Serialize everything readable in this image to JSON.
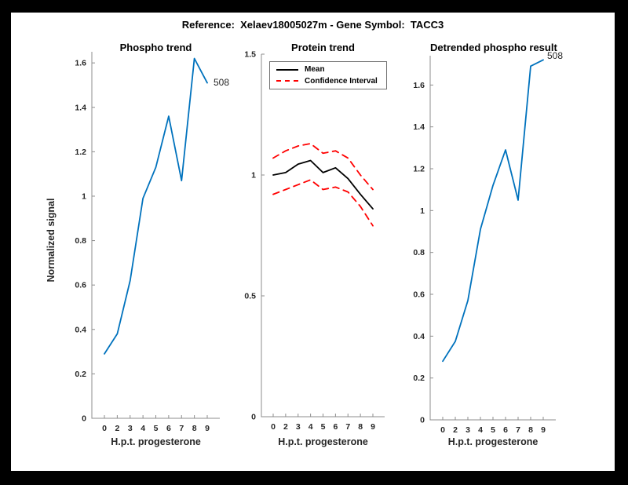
{
  "figure": {
    "title": "Reference:  Xelaev18005027m - Gene Symbol:  TACC3",
    "background_color": "#000000",
    "canvas_color": "#ffffff"
  },
  "colors": {
    "line_blue": "#0072BD",
    "ci_red": "#FF0000",
    "mean_black": "#000000",
    "axis_gray": "#8c8c8c",
    "tick_text": "#262626"
  },
  "legend": {
    "entries": [
      {
        "label": "Mean",
        "style": "solid-black"
      },
      {
        "label": "Confidence Interval",
        "style": "dashed-red"
      }
    ]
  },
  "chart_data": [
    {
      "type": "line",
      "title": "Phospho trend",
      "xlabel": "H.p.t. progesterone",
      "ylabel": "Normalized signal",
      "categories": [
        "0",
        "2",
        "3",
        "4",
        "5",
        "6",
        "7",
        "8",
        "9"
      ],
      "yticks": [
        "0",
        "0.2",
        "0.4",
        "0.6",
        "0.8",
        "1",
        "1.2",
        "1.4",
        "1.6"
      ],
      "ytick_values": [
        0,
        0.2,
        0.4,
        0.6,
        0.8,
        1,
        1.2,
        1.4,
        1.6
      ],
      "ylim": [
        0,
        1.65
      ],
      "grid": false,
      "annotation": "508",
      "series": [
        {
          "name": "phospho",
          "color": "#0072BD",
          "dash": "none",
          "values": [
            0.29,
            0.38,
            0.62,
            0.99,
            1.13,
            1.36,
            1.07,
            1.62,
            1.51
          ]
        }
      ]
    },
    {
      "type": "line",
      "title": "Protein trend",
      "xlabel": "H.p.t. progesterone",
      "ylabel": "",
      "categories": [
        "0",
        "2",
        "3",
        "4",
        "5",
        "6",
        "7",
        "8",
        "9"
      ],
      "yticks": [
        "0",
        "0.5",
        "1",
        "1.5"
      ],
      "ytick_values": [
        0,
        0.5,
        1,
        1.5
      ],
      "ylim": [
        0,
        1.5
      ],
      "grid": false,
      "legend_position": "top-center-inside",
      "series": [
        {
          "name": "Mean",
          "color": "#000000",
          "dash": "none",
          "values": [
            1.0,
            1.01,
            1.045,
            1.06,
            1.01,
            1.03,
            0.985,
            0.92,
            0.86
          ]
        },
        {
          "name": "Confidence Interval upper",
          "color": "#FF0000",
          "dash": "8 6",
          "values": [
            1.07,
            1.1,
            1.12,
            1.13,
            1.09,
            1.1,
            1.07,
            1.0,
            0.94
          ]
        },
        {
          "name": "Confidence Interval lower",
          "color": "#FF0000",
          "dash": "8 6",
          "values": [
            0.92,
            0.94,
            0.96,
            0.98,
            0.94,
            0.95,
            0.93,
            0.87,
            0.79
          ]
        }
      ]
    },
    {
      "type": "line",
      "title": "Detrended phospho result",
      "xlabel": "H.p.t. progesterone",
      "ylabel": "",
      "categories": [
        "0",
        "2",
        "3",
        "4",
        "5",
        "6",
        "7",
        "8",
        "9"
      ],
      "yticks": [
        "0",
        "0.2",
        "0.4",
        "0.6",
        "0.8",
        "1",
        "1.2",
        "1.4",
        "1.6"
      ],
      "ytick_values": [
        0,
        0.2,
        0.4,
        0.6,
        0.8,
        1,
        1.2,
        1.4,
        1.6
      ],
      "ylim": [
        0,
        1.74
      ],
      "grid": false,
      "annotation": "508",
      "series": [
        {
          "name": "detrended phospho",
          "color": "#0072BD",
          "dash": "none",
          "values": [
            0.28,
            0.375,
            0.57,
            0.91,
            1.12,
            1.29,
            1.05,
            1.69,
            1.72
          ]
        }
      ]
    }
  ]
}
